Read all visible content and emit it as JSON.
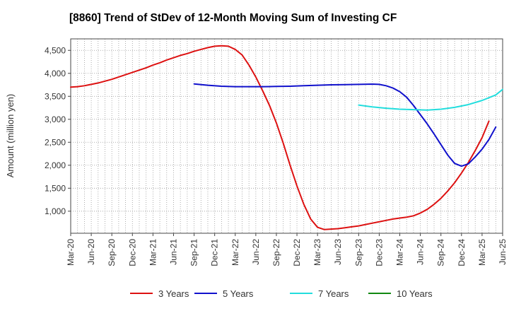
{
  "chart_data": {
    "type": "line",
    "title": "[8860]  Trend of StDev of 12-Month Moving Sum of Investing CF",
    "xlabel": "",
    "ylabel": "Amount (million yen)",
    "x_ticks": [
      "Mar-20",
      "Jun-20",
      "Sep-20",
      "Dec-20",
      "Mar-21",
      "Jun-21",
      "Sep-21",
      "Dec-21",
      "Mar-22",
      "Jun-22",
      "Sep-22",
      "Dec-22",
      "Mar-23",
      "Jun-23",
      "Sep-23",
      "Dec-23",
      "Mar-24",
      "Jun-24",
      "Sep-24",
      "Dec-24",
      "Mar-25",
      "Jun-25"
    ],
    "y_ticks": [
      1000,
      1500,
      2000,
      2500,
      3000,
      3500,
      4000,
      4500
    ],
    "y_tick_labels": [
      "1,000",
      "1,500",
      "2,000",
      "2,500",
      "3,000",
      "3,500",
      "4,000",
      "4,500"
    ],
    "ylim": [
      520,
      4750
    ],
    "grid": true,
    "legend_position": "bottom",
    "series": [
      {
        "name": "3 Years",
        "color": "#dd1111",
        "points": [
          [
            "Mar-20",
            3700
          ],
          [
            "Apr-20",
            3710
          ],
          [
            "May-20",
            3730
          ],
          [
            "Jun-20",
            3760
          ],
          [
            "Jul-20",
            3790
          ],
          [
            "Aug-20",
            3830
          ],
          [
            "Sep-20",
            3870
          ],
          [
            "Oct-20",
            3920
          ],
          [
            "Nov-20",
            3970
          ],
          [
            "Dec-20",
            4020
          ],
          [
            "Jan-21",
            4070
          ],
          [
            "Feb-21",
            4120
          ],
          [
            "Mar-21",
            4180
          ],
          [
            "Apr-21",
            4230
          ],
          [
            "May-21",
            4290
          ],
          [
            "Jun-21",
            4340
          ],
          [
            "Jul-21",
            4390
          ],
          [
            "Aug-21",
            4430
          ],
          [
            "Sep-21",
            4480
          ],
          [
            "Oct-21",
            4520
          ],
          [
            "Nov-21",
            4560
          ],
          [
            "Dec-21",
            4590
          ],
          [
            "Jan-22",
            4600
          ],
          [
            "Feb-22",
            4590
          ],
          [
            "Mar-22",
            4520
          ],
          [
            "Apr-22",
            4400
          ],
          [
            "May-22",
            4180
          ],
          [
            "Jun-22",
            3920
          ],
          [
            "Jul-22",
            3620
          ],
          [
            "Aug-22",
            3300
          ],
          [
            "Sep-22",
            2920
          ],
          [
            "Oct-22",
            2480
          ],
          [
            "Nov-22",
            2000
          ],
          [
            "Dec-22",
            1550
          ],
          [
            "Jan-23",
            1150
          ],
          [
            "Feb-23",
            830
          ],
          [
            "Mar-23",
            650
          ],
          [
            "Apr-23",
            600
          ],
          [
            "May-23",
            610
          ],
          [
            "Jun-23",
            620
          ],
          [
            "Jul-23",
            640
          ],
          [
            "Aug-23",
            660
          ],
          [
            "Sep-23",
            680
          ],
          [
            "Oct-23",
            710
          ],
          [
            "Nov-23",
            740
          ],
          [
            "Dec-23",
            770
          ],
          [
            "Jan-24",
            800
          ],
          [
            "Feb-24",
            830
          ],
          [
            "Mar-24",
            850
          ],
          [
            "Apr-24",
            870
          ],
          [
            "May-24",
            900
          ],
          [
            "Jun-24",
            960
          ],
          [
            "Jul-24",
            1040
          ],
          [
            "Aug-24",
            1150
          ],
          [
            "Sep-24",
            1280
          ],
          [
            "Oct-24",
            1440
          ],
          [
            "Nov-24",
            1620
          ],
          [
            "Dec-24",
            1830
          ],
          [
            "Jan-25",
            2060
          ],
          [
            "Feb-25",
            2320
          ],
          [
            "Mar-25",
            2600
          ],
          [
            "Apr-25",
            2960
          ]
        ]
      },
      {
        "name": "5 Years",
        "color": "#1111cc",
        "points": [
          [
            "Sep-21",
            3770
          ],
          [
            "Nov-21",
            3740
          ],
          [
            "Jan-22",
            3720
          ],
          [
            "Mar-22",
            3710
          ],
          [
            "May-22",
            3710
          ],
          [
            "Jul-22",
            3710
          ],
          [
            "Sep-22",
            3715
          ],
          [
            "Nov-22",
            3720
          ],
          [
            "Jan-23",
            3730
          ],
          [
            "Mar-23",
            3740
          ],
          [
            "May-23",
            3750
          ],
          [
            "Jul-23",
            3755
          ],
          [
            "Sep-23",
            3760
          ],
          [
            "Nov-23",
            3765
          ],
          [
            "Dec-23",
            3760
          ],
          [
            "Jan-24",
            3730
          ],
          [
            "Feb-24",
            3680
          ],
          [
            "Mar-24",
            3600
          ],
          [
            "Apr-24",
            3480
          ],
          [
            "May-24",
            3300
          ],
          [
            "Jun-24",
            3100
          ],
          [
            "Jul-24",
            2900
          ],
          [
            "Aug-24",
            2680
          ],
          [
            "Sep-24",
            2450
          ],
          [
            "Oct-24",
            2220
          ],
          [
            "Nov-24",
            2040
          ],
          [
            "Dec-24",
            1980
          ],
          [
            "Jan-25",
            2030
          ],
          [
            "Feb-25",
            2180
          ],
          [
            "Mar-25",
            2350
          ],
          [
            "Apr-25",
            2560
          ],
          [
            "May-25",
            2830
          ]
        ]
      },
      {
        "name": "7 Years",
        "color": "#22dddd",
        "points": [
          [
            "Sep-23",
            3310
          ],
          [
            "Nov-23",
            3270
          ],
          [
            "Jan-24",
            3240
          ],
          [
            "Mar-24",
            3220
          ],
          [
            "May-24",
            3210
          ],
          [
            "Jul-24",
            3200
          ],
          [
            "Sep-24",
            3220
          ],
          [
            "Nov-24",
            3260
          ],
          [
            "Jan-25",
            3320
          ],
          [
            "Mar-25",
            3410
          ],
          [
            "May-25",
            3530
          ],
          [
            "Jun-25",
            3650
          ]
        ]
      },
      {
        "name": "10 Years",
        "color": "#118811",
        "points": []
      }
    ]
  }
}
